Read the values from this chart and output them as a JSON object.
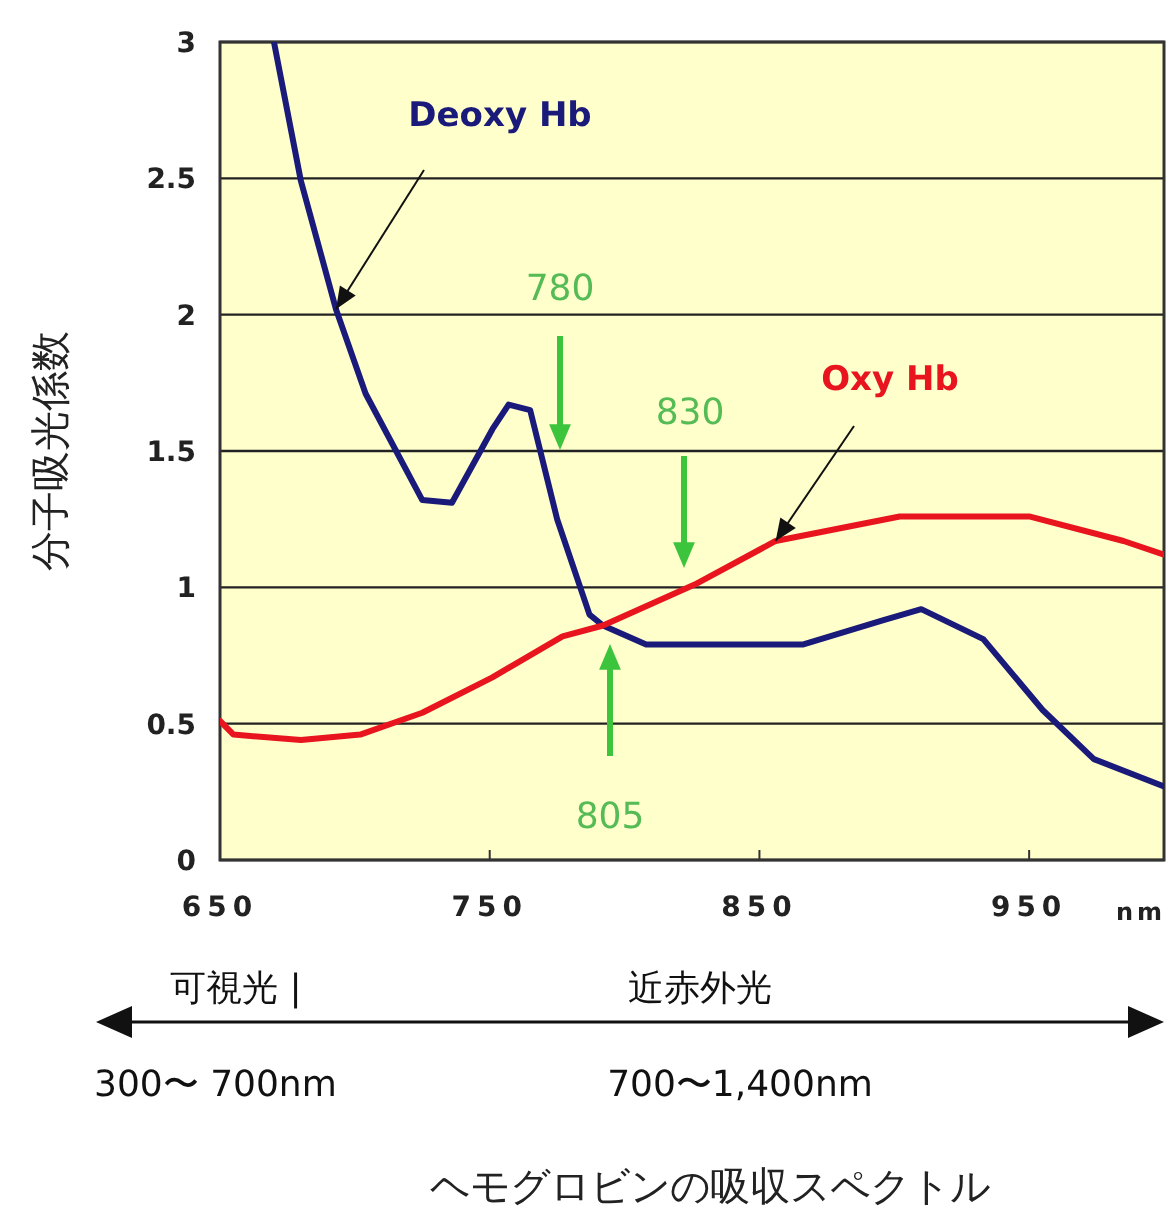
{
  "chart_data": {
    "type": "line",
    "title": "ヘモグロビンの吸収スペクトル",
    "xlabel": "nm",
    "ylabel": "分子吸光係数",
    "xlim": [
      650,
      1000
    ],
    "xticks": [
      650,
      750,
      850,
      950
    ],
    "ylim": [
      0,
      3
    ],
    "yticks": [
      0,
      0.5,
      1,
      1.5,
      2,
      2.5,
      3
    ],
    "grid": "y",
    "marker": "none",
    "line_style": "solid",
    "series": [
      {
        "name": "Deoxy Hb",
        "color": "#1a1a7a",
        "x": [
          670,
          680,
          693,
          704,
          725,
          736,
          751,
          757,
          765,
          775,
          787,
          792,
          808,
          866,
          896,
          910,
          933,
          955,
          974,
          1000
        ],
        "values": [
          3.0,
          2.49,
          2.02,
          1.71,
          1.32,
          1.31,
          1.58,
          1.67,
          1.65,
          1.25,
          0.9,
          0.86,
          0.79,
          0.79,
          0.88,
          0.92,
          0.81,
          0.55,
          0.37,
          0.27
        ]
      },
      {
        "name": "Oxy Hb",
        "color": "#e8141e",
        "x": [
          650,
          655,
          680,
          702,
          725,
          751,
          777,
          792,
          826,
          856,
          902,
          950,
          985,
          1000
        ],
        "values": [
          0.51,
          0.46,
          0.44,
          0.46,
          0.54,
          0.67,
          0.82,
          0.86,
          1.01,
          1.17,
          1.26,
          1.26,
          1.17,
          1.12
        ]
      }
    ],
    "annotations": [
      "可視光 |",
      "近赤外光",
      "300〜 700nm",
      "700〜1,400nm",
      "780",
      "830",
      "805"
    ]
  }
}
